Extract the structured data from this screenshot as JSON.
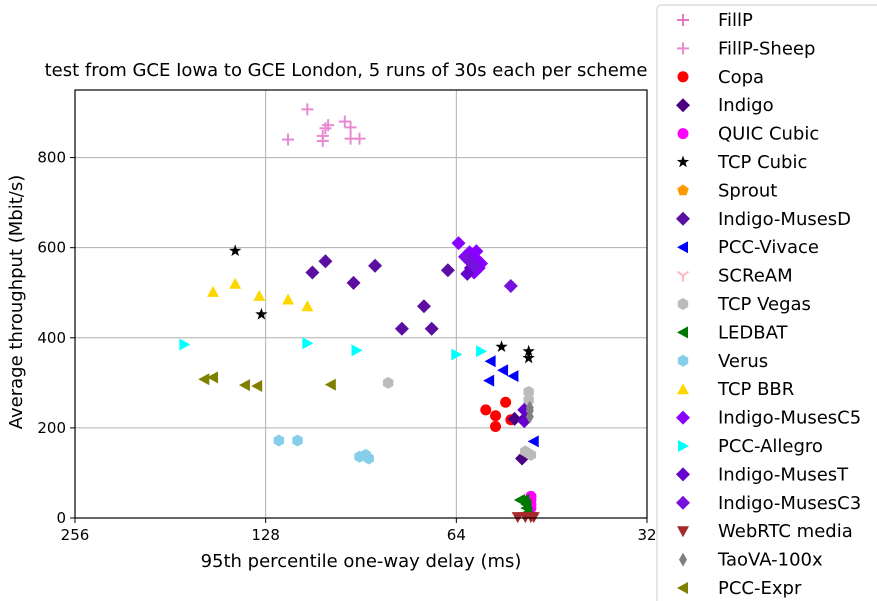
{
  "chart_data": {
    "type": "scatter",
    "title": "test from GCE Iowa to GCE London, 5 runs of 30s each per scheme",
    "xlabel": "95th percentile one-way delay (ms)",
    "ylabel": "Average throughput (Mbit/s)",
    "x_scale": "log2, inverted",
    "xlim": [
      256,
      32
    ],
    "ylim": [
      0,
      950
    ],
    "x_ticks": [
      256,
      128,
      64,
      32
    ],
    "x_tick_labels": [
      "256",
      "128",
      "64",
      "32"
    ],
    "y_ticks": [
      0,
      200,
      400,
      600,
      800
    ],
    "y_tick_labels": [
      "0",
      "200",
      "400",
      "600",
      "800"
    ],
    "grid": true,
    "legend_position": "right, outside plot",
    "series": [
      {
        "name": "FillP",
        "marker": "plus",
        "color": "#e377c2",
        "points": []
      },
      {
        "name": "FillP-Sheep",
        "marker": "plus",
        "color": "#e78ad0",
        "points": [
          [
            110,
            907
          ],
          [
            118,
            840
          ],
          [
            103,
            865
          ],
          [
            102,
            872
          ],
          [
            96,
            880
          ],
          [
            104,
            848
          ],
          [
            104,
            837
          ],
          [
            94,
            842
          ],
          [
            94,
            867
          ],
          [
            91,
            842
          ]
        ]
      },
      {
        "name": "Copa",
        "marker": "circle",
        "color": "#ff0000",
        "points": [
          [
            57.5,
            240
          ],
          [
            55.5,
            227
          ],
          [
            53.5,
            257
          ],
          [
            52.5,
            218
          ],
          [
            55.5,
            203
          ]
        ]
      },
      {
        "name": "Indigo",
        "marker": "diamond",
        "color": "#4b0082",
        "points": [
          [
            51.8,
            220
          ],
          [
            49.8,
            222
          ],
          [
            50.4,
            132
          ]
        ]
      },
      {
        "name": "QUIC Cubic",
        "marker": "circle",
        "color": "#ff00ff",
        "points": [
          [
            48.8,
            48
          ],
          [
            48.8,
            40
          ],
          [
            48.8,
            30
          ],
          [
            48.8,
            22
          ]
        ]
      },
      {
        "name": "TCP Cubic",
        "marker": "star",
        "color": "#000000",
        "points": [
          [
            143,
            593
          ],
          [
            130,
            452
          ],
          [
            54.3,
            380
          ],
          [
            49.2,
            370
          ],
          [
            49.2,
            355
          ]
        ]
      },
      {
        "name": "Sprout",
        "marker": "pentagon",
        "color": "#ff9900",
        "points": []
      },
      {
        "name": "Indigo-MusesD",
        "marker": "diamond",
        "color": "#5a0fa0",
        "points": [
          [
            108,
            545
          ],
          [
            103,
            570
          ],
          [
            93,
            522
          ],
          [
            86,
            560
          ],
          [
            66,
            550
          ],
          [
            78,
            420
          ],
          [
            72,
            470
          ],
          [
            70,
            420
          ]
        ]
      },
      {
        "name": "PCC-Vivace",
        "marker": "triangle-left",
        "color": "#0000ff",
        "points": [
          [
            56.5,
            348
          ],
          [
            54,
            328
          ],
          [
            52,
            315
          ],
          [
            56.8,
            305
          ],
          [
            48.3,
            170
          ]
        ]
      },
      {
        "name": "SCReAM",
        "marker": "tri-down",
        "color": "#ffb6c1",
        "points": []
      },
      {
        "name": "TCP Vegas",
        "marker": "hexagon",
        "color": "#bbbbbb",
        "points": [
          [
            82,
            300
          ],
          [
            49.2,
            280
          ],
          [
            49.2,
            262
          ],
          [
            49.8,
            148
          ],
          [
            48.8,
            140
          ]
        ]
      },
      {
        "name": "LEDBAT",
        "marker": "triangle-left",
        "color": "#007700",
        "points": [
          [
            50.8,
            40
          ],
          [
            50,
            40
          ],
          [
            49.6,
            30
          ],
          [
            49.6,
            22
          ],
          [
            49.4,
            12
          ]
        ]
      },
      {
        "name": "Verus",
        "marker": "hexagon",
        "color": "#87ceeb",
        "points": [
          [
            122,
            172
          ],
          [
            114,
            172
          ],
          [
            91,
            136
          ],
          [
            89,
            140
          ],
          [
            88,
            132
          ]
        ]
      },
      {
        "name": "TCP BBR",
        "marker": "triangle-up",
        "color": "#ffd700",
        "points": [
          [
            155,
            502
          ],
          [
            143,
            520
          ],
          [
            131,
            493
          ],
          [
            118,
            485
          ],
          [
            110,
            470
          ]
        ]
      },
      {
        "name": "Indigo-MusesC5",
        "marker": "diamond",
        "color": "#8800ff",
        "points": [
          [
            63.5,
            610
          ],
          [
            62,
            580
          ],
          [
            61,
            590
          ],
          [
            60.5,
            568
          ],
          [
            59.5,
            575
          ],
          [
            59.5,
            592
          ],
          [
            59,
            555
          ],
          [
            58.5,
            565
          ],
          [
            60,
            545
          ]
        ]
      },
      {
        "name": "PCC-Allegro",
        "marker": "triangle-right",
        "color": "#00ffff",
        "points": [
          [
            172,
            385
          ],
          [
            110,
            388
          ],
          [
            92,
            372
          ],
          [
            64,
            363
          ],
          [
            58.5,
            370
          ]
        ]
      },
      {
        "name": "Indigo-MusesT",
        "marker": "diamond",
        "color": "#6600cc",
        "points": [
          [
            61.5,
            542
          ],
          [
            60.7,
            555
          ],
          [
            50,
            240
          ],
          [
            50,
            215
          ]
        ]
      },
      {
        "name": "Indigo-MusesC3",
        "marker": "diamond",
        "color": "#7711dd",
        "points": [
          [
            52.5,
            515
          ],
          [
            61.5,
            575
          ],
          [
            60,
            560
          ]
        ]
      },
      {
        "name": "WebRTC media",
        "marker": "triangle-down",
        "color": "#a52a2a",
        "points": [
          [
            51.2,
            2
          ],
          [
            49.8,
            2
          ],
          [
            48.8,
            2
          ],
          [
            48.3,
            2
          ]
        ]
      },
      {
        "name": "TaoVA-100x",
        "marker": "thin-diamond",
        "color": "#808080",
        "points": [
          [
            49,
            245
          ],
          [
            49,
            238
          ],
          [
            49,
            225
          ]
        ]
      },
      {
        "name": "PCC-Expr",
        "marker": "triangle-left",
        "color": "#808000",
        "points": [
          [
            160,
            308
          ],
          [
            155,
            312
          ],
          [
            138,
            295
          ],
          [
            132,
            293
          ],
          [
            101,
            296
          ]
        ]
      }
    ]
  }
}
